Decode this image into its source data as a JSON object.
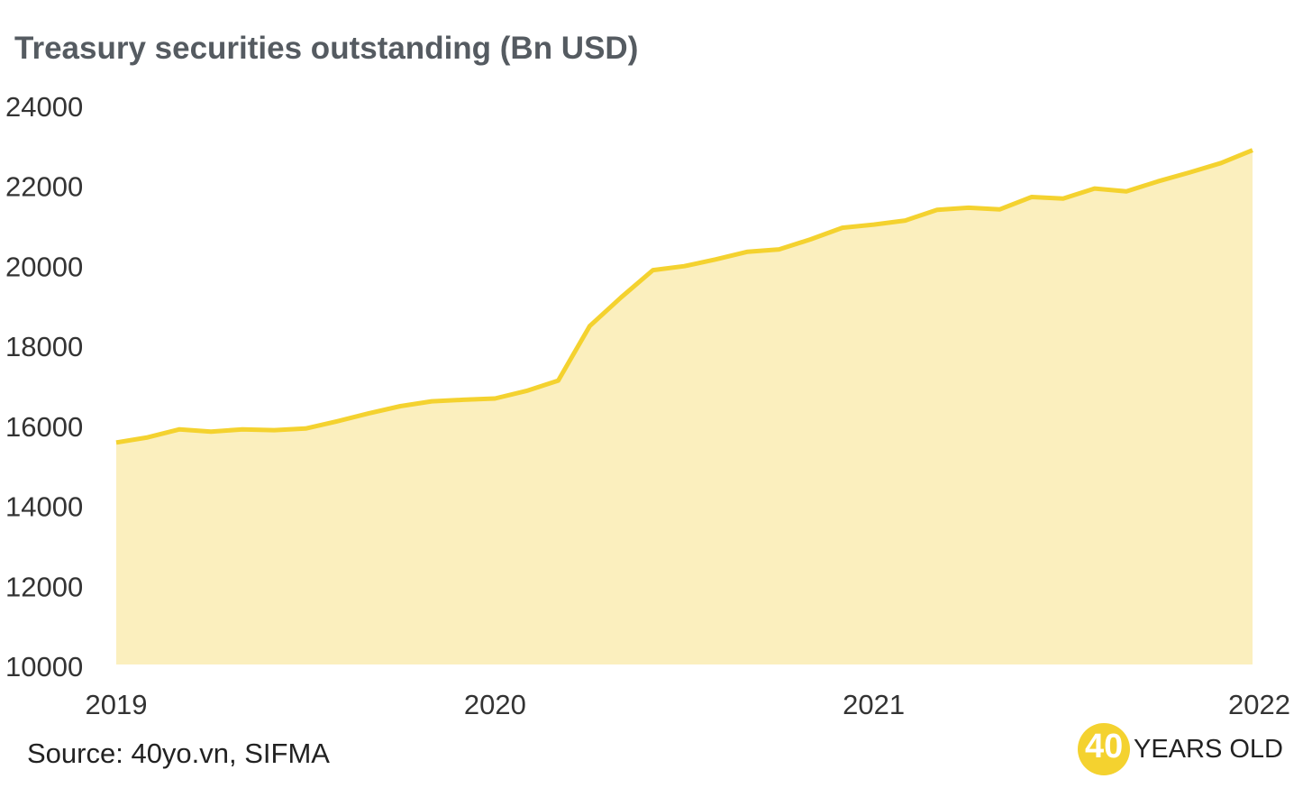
{
  "chart_data": {
    "type": "area",
    "title": "Treasury securities outstanding (Bn USD)",
    "xlabel": "",
    "ylabel": "",
    "ylim": [
      10000,
      24000
    ],
    "xlim": [
      2019,
      2022
    ],
    "y_ticks": [
      "10000",
      "12000",
      "14000",
      "16000",
      "18000",
      "20000",
      "22000",
      "24000"
    ],
    "x_ticks": [
      "2019",
      "2020",
      "2021",
      "2022"
    ],
    "grid": false,
    "legend": "none",
    "line_color": "#f4d22f",
    "fill_color": "#fbefbe",
    "series": [
      {
        "x": [
          2019.0,
          2019.083,
          2019.167,
          2019.25,
          2019.333,
          2019.417,
          2019.5,
          2019.583,
          2019.667,
          2019.75,
          2019.833,
          2019.917,
          2020.0,
          2020.083,
          2020.167,
          2020.25,
          2020.333,
          2020.417,
          2020.5,
          2020.583,
          2020.667,
          2020.75,
          2020.833,
          2020.917,
          2021.0,
          2021.083,
          2021.167,
          2021.25,
          2021.333,
          2021.417,
          2021.5,
          2021.583,
          2021.667,
          2021.75,
          2021.833,
          2021.917,
          2022.0
        ],
        "y": [
          15550,
          15680,
          15880,
          15820,
          15880,
          15860,
          15900,
          16080,
          16280,
          16460,
          16580,
          16620,
          16650,
          16840,
          17100,
          18460,
          19180,
          19860,
          19960,
          20130,
          20320,
          20380,
          20630,
          20920,
          21000,
          21100,
          21370,
          21420,
          21380,
          21690,
          21650,
          21900,
          21830,
          22080,
          22300,
          22540,
          22860
        ]
      }
    ]
  },
  "source": "Source: 40yo.vn, SIFMA",
  "brand": {
    "number": "40",
    "text": "YEARS OLD",
    "color": "#f4d22f"
  }
}
